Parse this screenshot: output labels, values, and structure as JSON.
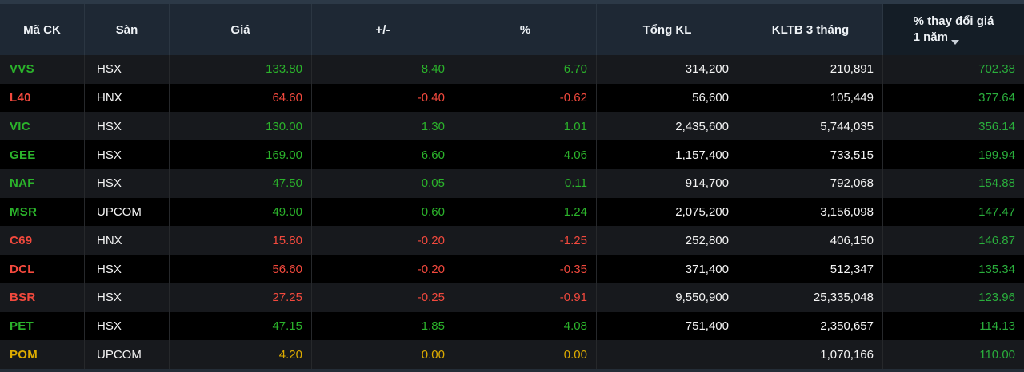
{
  "table": {
    "columns": [
      {
        "key": "ticker",
        "label": "Mã CK"
      },
      {
        "key": "exchange",
        "label": "Sàn"
      },
      {
        "key": "price",
        "label": "Giá"
      },
      {
        "key": "change",
        "label": "+/-"
      },
      {
        "key": "pct",
        "label": "%"
      },
      {
        "key": "volume",
        "label": "Tổng KL"
      },
      {
        "key": "avg_vol",
        "label": "KLTB 3 tháng"
      },
      {
        "key": "yoy",
        "label": "% thay đổi giá 1 năm",
        "label_line1": "% thay đổi giá",
        "label_line2": "1 năm",
        "sorted": true,
        "sort_direction": "desc"
      }
    ],
    "rows": [
      {
        "ticker": "VVS",
        "exchange": "HSX",
        "price": "133.80",
        "change": "8.40",
        "pct": "6.70",
        "volume": "314,200",
        "avg_vol": "210,891",
        "yoy": "702.38",
        "trend": "up"
      },
      {
        "ticker": "L40",
        "exchange": "HNX",
        "price": "64.60",
        "change": "-0.40",
        "pct": "-0.62",
        "volume": "56,600",
        "avg_vol": "105,449",
        "yoy": "377.64",
        "trend": "down"
      },
      {
        "ticker": "VIC",
        "exchange": "HSX",
        "price": "130.00",
        "change": "1.30",
        "pct": "1.01",
        "volume": "2,435,600",
        "avg_vol": "5,744,035",
        "yoy": "356.14",
        "trend": "up"
      },
      {
        "ticker": "GEE",
        "exchange": "HSX",
        "price": "169.00",
        "change": "6.60",
        "pct": "4.06",
        "volume": "1,157,400",
        "avg_vol": "733,515",
        "yoy": "199.94",
        "trend": "up"
      },
      {
        "ticker": "NAF",
        "exchange": "HSX",
        "price": "47.50",
        "change": "0.05",
        "pct": "0.11",
        "volume": "914,700",
        "avg_vol": "792,068",
        "yoy": "154.88",
        "trend": "up"
      },
      {
        "ticker": "MSR",
        "exchange": "UPCOM",
        "price": "49.00",
        "change": "0.60",
        "pct": "1.24",
        "volume": "2,075,200",
        "avg_vol": "3,156,098",
        "yoy": "147.47",
        "trend": "up"
      },
      {
        "ticker": "C69",
        "exchange": "HNX",
        "price": "15.80",
        "change": "-0.20",
        "pct": "-1.25",
        "volume": "252,800",
        "avg_vol": "406,150",
        "yoy": "146.87",
        "trend": "down"
      },
      {
        "ticker": "DCL",
        "exchange": "HSX",
        "price": "56.60",
        "change": "-0.20",
        "pct": "-0.35",
        "volume": "371,400",
        "avg_vol": "512,347",
        "yoy": "135.34",
        "trend": "down"
      },
      {
        "ticker": "BSR",
        "exchange": "HSX",
        "price": "27.25",
        "change": "-0.25",
        "pct": "-0.91",
        "volume": "9,550,900",
        "avg_vol": "25,335,048",
        "yoy": "123.96",
        "trend": "down"
      },
      {
        "ticker": "PET",
        "exchange": "HSX",
        "price": "47.15",
        "change": "1.85",
        "pct": "4.08",
        "volume": "751,400",
        "avg_vol": "2,350,657",
        "yoy": "114.13",
        "trend": "up"
      },
      {
        "ticker": "POM",
        "exchange": "UPCOM",
        "price": "4.20",
        "change": "0.00",
        "pct": "0.00",
        "volume": "",
        "avg_vol": "1,070,166",
        "yoy": "110.00",
        "trend": "flat"
      }
    ]
  },
  "colors": {
    "up": "#2bb32b",
    "down": "#f2493d",
    "flat": "#ddab00",
    "yoy": "#2aae3c",
    "header_bg": "#1e2834",
    "header_sorted_bg": "#141d26",
    "header_text": "#eef2f6",
    "header_separator": "#2b3642",
    "row_odd_bg": "#17191d",
    "row_even_bg": "#000000",
    "cell_text": "#f4f4f4",
    "separator": "#26282b",
    "top_strip": "#2c3947",
    "bottom_strip": "#242d37"
  }
}
